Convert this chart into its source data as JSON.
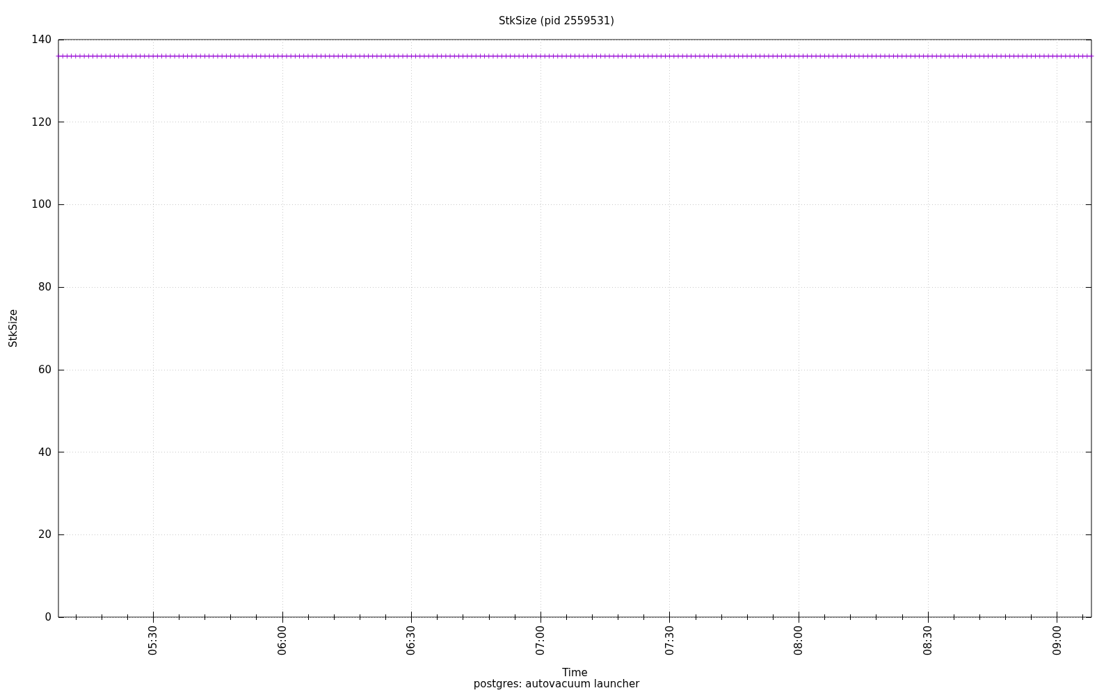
{
  "chart_data": {
    "type": "line",
    "title": "StkSize (pid 2559531)",
    "xlabel": "Time",
    "ylabel": "StkSize",
    "annotations": [
      "postgres: autovacuum launcher"
    ],
    "color": "#9400d3",
    "marker": "cross",
    "line_style": "solid",
    "grid": true,
    "xlim": [
      5.1333,
      9.1333
    ],
    "ylim": [
      0,
      140
    ],
    "xticks": [
      {
        "value": 5.2,
        "label": null
      },
      {
        "value": 5.3,
        "label": null
      },
      {
        "value": 5.4,
        "label": null
      },
      {
        "value": 5.5,
        "label": "05:30"
      },
      {
        "value": 5.6,
        "label": null
      },
      {
        "value": 5.7,
        "label": null
      },
      {
        "value": 5.8,
        "label": null
      },
      {
        "value": 5.9,
        "label": null
      },
      {
        "value": 6,
        "label": "06:00"
      },
      {
        "value": 6.1,
        "label": null
      },
      {
        "value": 6.2,
        "label": null
      },
      {
        "value": 6.3,
        "label": null
      },
      {
        "value": 6.4,
        "label": null
      },
      {
        "value": 6.5,
        "label": "06:30"
      },
      {
        "value": 6.6,
        "label": null
      },
      {
        "value": 6.7,
        "label": null
      },
      {
        "value": 6.8,
        "label": null
      },
      {
        "value": 6.9,
        "label": null
      },
      {
        "value": 7,
        "label": "07:00"
      },
      {
        "value": 7.1,
        "label": null
      },
      {
        "value": 7.2,
        "label": null
      },
      {
        "value": 7.3,
        "label": null
      },
      {
        "value": 7.4,
        "label": null
      },
      {
        "value": 7.5,
        "label": "07:30"
      },
      {
        "value": 7.6,
        "label": null
      },
      {
        "value": 7.7,
        "label": null
      },
      {
        "value": 7.8,
        "label": null
      },
      {
        "value": 7.9,
        "label": null
      },
      {
        "value": 8,
        "label": "08:00"
      },
      {
        "value": 8.1,
        "label": null
      },
      {
        "value": 8.2,
        "label": null
      },
      {
        "value": 8.3,
        "label": null
      },
      {
        "value": 8.4,
        "label": null
      },
      {
        "value": 8.5,
        "label": "08:30"
      },
      {
        "value": 8.6,
        "label": null
      },
      {
        "value": 8.7,
        "label": null
      },
      {
        "value": 8.8,
        "label": null
      },
      {
        "value": 8.9,
        "label": null
      },
      {
        "value": 9,
        "label": "09:00"
      },
      {
        "value": 9.1,
        "label": null
      }
    ],
    "yticks": [
      0,
      20,
      40,
      60,
      80,
      100,
      120,
      140
    ],
    "x": [
      5.1333,
      5.15,
      5.1667,
      5.1833,
      5.2,
      5.2167,
      5.2333,
      5.25,
      5.2667,
      5.2833,
      5.3,
      5.3167,
      5.3333,
      5.35,
      5.3667,
      5.3833,
      5.4,
      5.4167,
      5.4333,
      5.45,
      5.4667,
      5.4833,
      5.5,
      5.5167,
      5.5333,
      5.55,
      5.5667,
      5.5833,
      5.6,
      5.6167,
      5.6333,
      5.65,
      5.6667,
      5.6833,
      5.7,
      5.7167,
      5.7333,
      5.75,
      5.7667,
      5.7833,
      5.8,
      5.8167,
      5.8333,
      5.85,
      5.8667,
      5.8833,
      5.9,
      5.9167,
      5.9333,
      5.95,
      5.9667,
      5.9833,
      6,
      6.0167,
      6.0333,
      6.05,
      6.0667,
      6.0833,
      6.1,
      6.1167,
      6.1333,
      6.15,
      6.1667,
      6.1833,
      6.2,
      6.2167,
      6.2333,
      6.25,
      6.2667,
      6.2833,
      6.3,
      6.3167,
      6.3333,
      6.35,
      6.3667,
      6.3833,
      6.4,
      6.4167,
      6.4333,
      6.45,
      6.4667,
      6.4833,
      6.5,
      6.5167,
      6.5333,
      6.55,
      6.5667,
      6.5833,
      6.6,
      6.6167,
      6.6333,
      6.65,
      6.6667,
      6.6833,
      6.7,
      6.7167,
      6.7333,
      6.75,
      6.7667,
      6.7833,
      6.8,
      6.8167,
      6.8333,
      6.85,
      6.8667,
      6.8833,
      6.9,
      6.9167,
      6.9333,
      6.95,
      6.9667,
      6.9833,
      7,
      7.0167,
      7.0333,
      7.05,
      7.0667,
      7.0833,
      7.1,
      7.1167,
      7.1333,
      7.15,
      7.1667,
      7.1833,
      7.2,
      7.2167,
      7.2333,
      7.25,
      7.2667,
      7.2833,
      7.3,
      7.3167,
      7.3333,
      7.35,
      7.3667,
      7.3833,
      7.4,
      7.4167,
      7.4333,
      7.45,
      7.4667,
      7.4833,
      7.5,
      7.5167,
      7.5333,
      7.55,
      7.5667,
      7.5833,
      7.6,
      7.6167,
      7.6333,
      7.65,
      7.6667,
      7.6833,
      7.7,
      7.7167,
      7.7333,
      7.75,
      7.7667,
      7.7833,
      7.8,
      7.8167,
      7.8333,
      7.85,
      7.8667,
      7.8833,
      7.9,
      7.9167,
      7.9333,
      7.95,
      7.9667,
      7.9833,
      8,
      8.0167,
      8.0333,
      8.05,
      8.0667,
      8.0833,
      8.1,
      8.1167,
      8.1333,
      8.15,
      8.1667,
      8.1833,
      8.2,
      8.2167,
      8.2333,
      8.25,
      8.2667,
      8.2833,
      8.3,
      8.3167,
      8.3333,
      8.35,
      8.3667,
      8.3833,
      8.4,
      8.4167,
      8.4333,
      8.45,
      8.4667,
      8.4833,
      8.5,
      8.5167,
      8.5333,
      8.55,
      8.5667,
      8.5833,
      8.6,
      8.6167,
      8.6333,
      8.65,
      8.6667,
      8.6833,
      8.7,
      8.7167,
      8.7333,
      8.75,
      8.7667,
      8.7833,
      8.8,
      8.8167,
      8.8333,
      8.85,
      8.8667,
      8.8833,
      8.9,
      8.9167,
      8.9333,
      8.95,
      8.9667,
      8.9833,
      9,
      9.0167,
      9.0333,
      9.05,
      9.0667,
      9.0833,
      9.1,
      9.1167,
      9.1333
    ],
    "values": [
      136,
      136,
      136,
      136,
      136,
      136,
      136,
      136,
      136,
      136,
      136,
      136,
      136,
      136,
      136,
      136,
      136,
      136,
      136,
      136,
      136,
      136,
      136,
      136,
      136,
      136,
      136,
      136,
      136,
      136,
      136,
      136,
      136,
      136,
      136,
      136,
      136,
      136,
      136,
      136,
      136,
      136,
      136,
      136,
      136,
      136,
      136,
      136,
      136,
      136,
      136,
      136,
      136,
      136,
      136,
      136,
      136,
      136,
      136,
      136,
      136,
      136,
      136,
      136,
      136,
      136,
      136,
      136,
      136,
      136,
      136,
      136,
      136,
      136,
      136,
      136,
      136,
      136,
      136,
      136,
      136,
      136,
      136,
      136,
      136,
      136,
      136,
      136,
      136,
      136,
      136,
      136,
      136,
      136,
      136,
      136,
      136,
      136,
      136,
      136,
      136,
      136,
      136,
      136,
      136,
      136,
      136,
      136,
      136,
      136,
      136,
      136,
      136,
      136,
      136,
      136,
      136,
      136,
      136,
      136,
      136,
      136,
      136,
      136,
      136,
      136,
      136,
      136,
      136,
      136,
      136,
      136,
      136,
      136,
      136,
      136,
      136,
      136,
      136,
      136,
      136,
      136,
      136,
      136,
      136,
      136,
      136,
      136,
      136,
      136,
      136,
      136,
      136,
      136,
      136,
      136,
      136,
      136,
      136,
      136,
      136,
      136,
      136,
      136,
      136,
      136,
      136,
      136,
      136,
      136,
      136,
      136,
      136,
      136,
      136,
      136,
      136,
      136,
      136,
      136,
      136,
      136,
      136,
      136,
      136,
      136,
      136,
      136,
      136,
      136,
      136,
      136,
      136,
      136,
      136,
      136,
      136,
      136,
      136,
      136,
      136,
      136,
      136,
      136,
      136,
      136,
      136,
      136,
      136,
      136,
      136,
      136,
      136,
      136,
      136,
      136,
      136,
      136,
      136,
      136,
      136,
      136,
      136,
      136,
      136,
      136,
      136,
      136,
      136,
      136,
      136,
      136,
      136,
      136,
      136,
      136,
      136,
      136,
      136,
      136,
      136
    ]
  }
}
